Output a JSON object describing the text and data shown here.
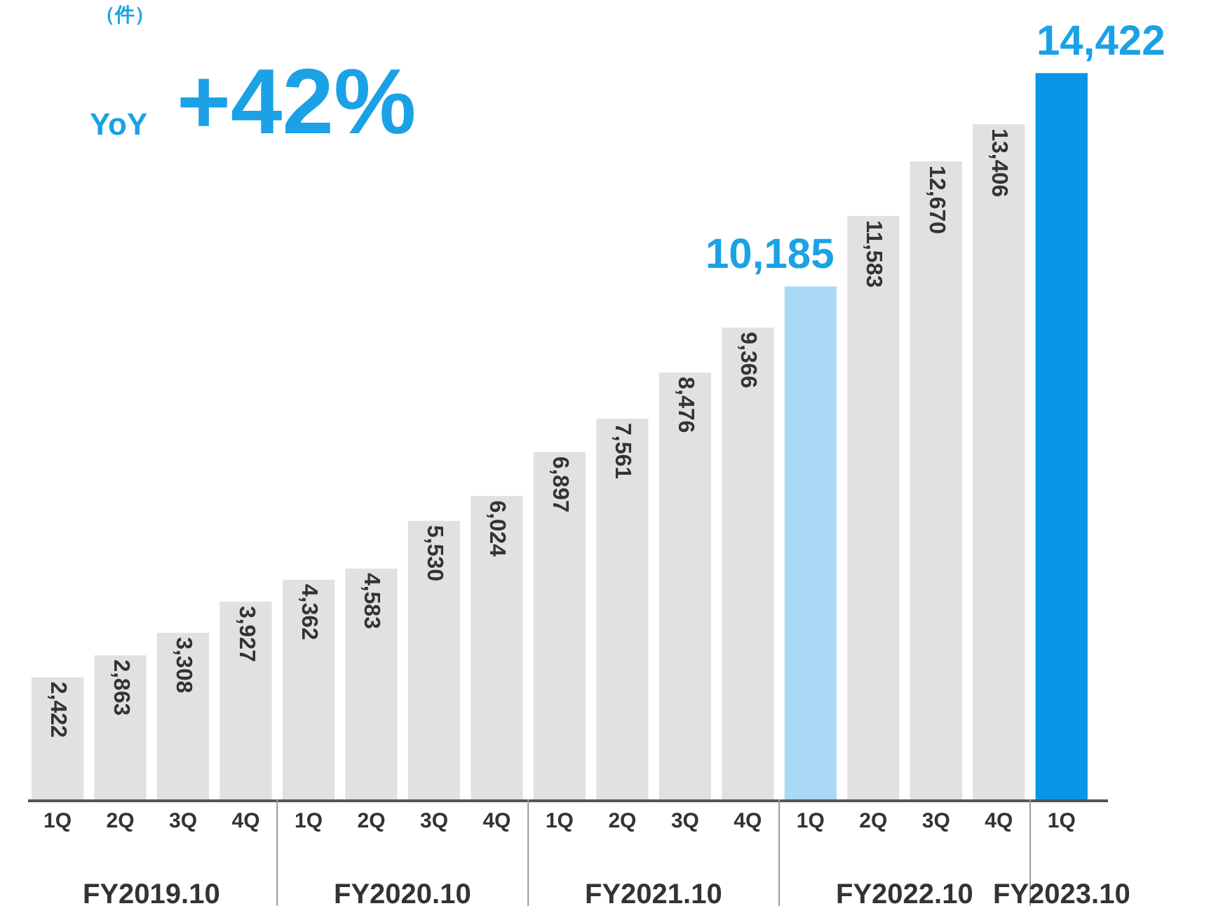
{
  "chart_data": {
    "type": "bar",
    "ylabel": "（件）",
    "categories": [
      "1Q",
      "2Q",
      "3Q",
      "4Q",
      "1Q",
      "2Q",
      "3Q",
      "4Q",
      "1Q",
      "2Q",
      "3Q",
      "4Q",
      "1Q",
      "2Q",
      "3Q",
      "4Q",
      "1Q"
    ],
    "values": [
      2422,
      2863,
      3308,
      3927,
      4362,
      4583,
      5530,
      6024,
      6897,
      7561,
      8476,
      9366,
      10185,
      11583,
      12670,
      13406,
      14422
    ],
    "colors": [
      "#e1e1e1",
      "#e1e1e1",
      "#e1e1e1",
      "#e1e1e1",
      "#e1e1e1",
      "#e1e1e1",
      "#e1e1e1",
      "#e1e1e1",
      "#e1e1e1",
      "#e1e1e1",
      "#e1e1e1",
      "#e1e1e1",
      "#aad9f5",
      "#e1e1e1",
      "#e1e1e1",
      "#e1e1e1",
      "#0a96e6"
    ],
    "value_labels": [
      "2,422",
      "2,863",
      "3,308",
      "3,927",
      "4,362",
      "4,583",
      "5,530",
      "6,024",
      "6,897",
      "7,561",
      "8,476",
      "9,366",
      "10,185",
      "11,583",
      "12,670",
      "13,406",
      "14,422"
    ],
    "annotations": [
      "YoY",
      "+42%",
      "FY2019.10",
      "FY2020.10",
      "FY2021.10",
      "FY2022.10",
      "FY2023.10"
    ],
    "grid": false,
    "legend": false
  }
}
